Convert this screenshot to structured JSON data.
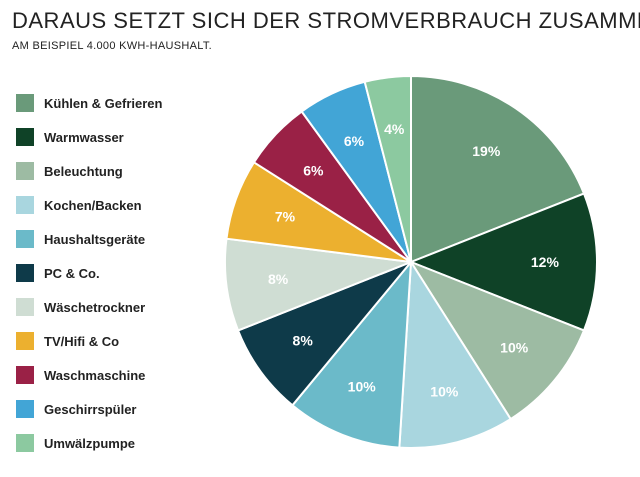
{
  "title": "DARAUS SETZT SICH DER STROMVERBRAUCH ZUSAMMEN",
  "subtitle": "AM BEISPIEL 4.000 KWH-HAUSHALT.",
  "chart_data": {
    "type": "pie",
    "title": "DARAUS SETZT SICH DER STROMVERBRAUCH ZUSAMMEN",
    "subtitle": "AM BEISPIEL 4.000 KWH-HAUSHALT.",
    "legend_position": "left",
    "categories": [
      "Kühlen & Gefrieren",
      "Warmwasser",
      "Beleuchtung",
      "Kochen/Backen",
      "Haushaltsgeräte",
      "PC & Co.",
      "Wäschetrockner",
      "TV/Hifi & Co",
      "Waschmaschine",
      "Geschirrspüler",
      "Umwälzpumpe"
    ],
    "values": [
      19,
      12,
      10,
      10,
      10,
      8,
      8,
      7,
      6,
      6,
      4
    ],
    "labels": [
      "19%",
      "12%",
      "10%",
      "10%",
      "10%",
      "8%",
      "8%",
      "7%",
      "6%",
      "6%",
      "4%"
    ],
    "colors": [
      "#6a9a7a",
      "#0f4227",
      "#9dbba3",
      "#a9d6df",
      "#6bbac9",
      "#0e3a49",
      "#cfddd3",
      "#ecb02f",
      "#9a2146",
      "#42a5d6",
      "#8cc9a0"
    ],
    "start_angle_deg": 0,
    "direction": "clockwise"
  }
}
